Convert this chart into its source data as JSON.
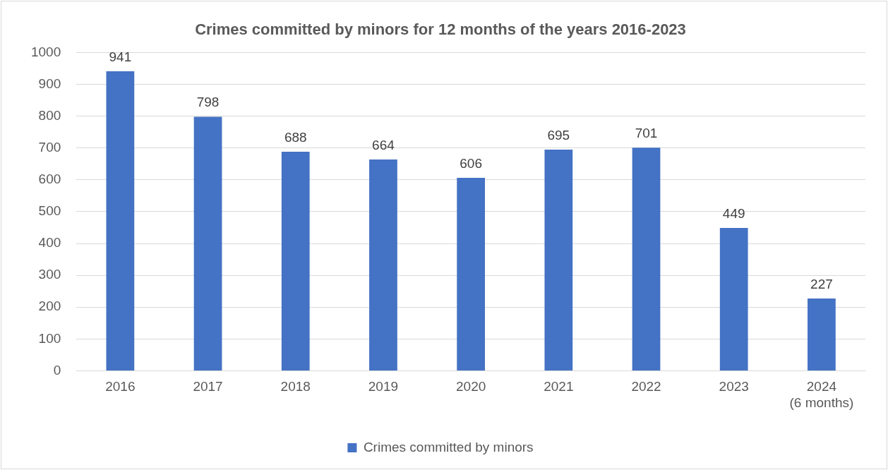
{
  "chart_data": {
    "type": "bar",
    "title": "Crimes committed by minors for 12 months of the years 2016-2023",
    "categories": [
      "2016",
      "2017",
      "2018",
      "2019",
      "2020",
      "2021",
      "2022",
      "2023",
      "2024\n(6 months)"
    ],
    "series": [
      {
        "name": "Crimes committed by minors",
        "color": "#4472c4",
        "values": [
          941,
          798,
          688,
          664,
          606,
          695,
          701,
          449,
          227
        ]
      }
    ],
    "ylim": [
      0,
      1000
    ],
    "yticks": [
      0,
      100,
      200,
      300,
      400,
      500,
      600,
      700,
      800,
      900,
      1000
    ],
    "grid": "y",
    "legend": "bottom",
    "data_labels": true
  }
}
